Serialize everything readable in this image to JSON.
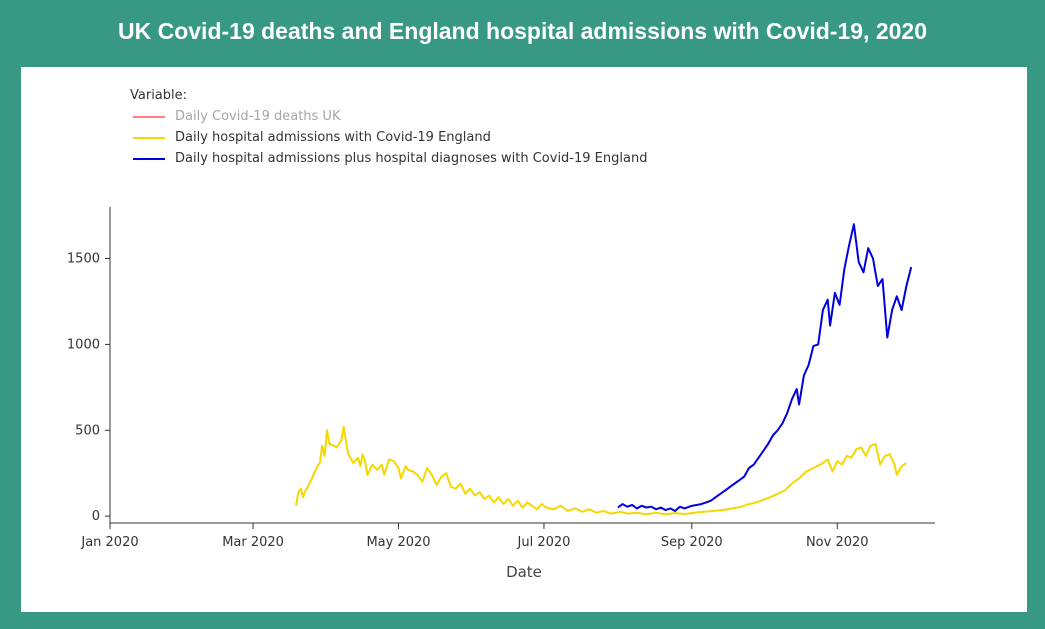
{
  "page": {
    "title": "UK Covid-19 deaths and England hospital admissions with Covid-19, 2020",
    "background": "#379884"
  },
  "chart_data": {
    "type": "line",
    "title": "UK Covid-19 deaths and England hospital admissions with Covid-19, 2020",
    "xlabel": "Date",
    "ylabel": "",
    "legend_title": "Variable:",
    "legend_position": "top-left",
    "grid": false,
    "xlim": [
      "2020-01-01",
      "2020-12-12"
    ],
    "ylim": [
      -40,
      1800
    ],
    "x_ticks": [
      {
        "date": "2020-01-01",
        "label": "Jan 2020"
      },
      {
        "date": "2020-03-01",
        "label": "Mar 2020"
      },
      {
        "date": "2020-05-01",
        "label": "May 2020"
      },
      {
        "date": "2020-07-01",
        "label": "Jul 2020"
      },
      {
        "date": "2020-09-01",
        "label": "Sep 2020"
      },
      {
        "date": "2020-11-01",
        "label": "Nov 2020"
      }
    ],
    "y_ticks": [
      0,
      500,
      1000,
      1500
    ],
    "series": [
      {
        "name": "Daily Covid-19 deaths UK",
        "color": "#ff8080",
        "visible": false,
        "points": []
      },
      {
        "name": "Daily hospital admissions with Covid-19 England",
        "color": "#f5d800",
        "visible": true,
        "points": [
          [
            "2020-03-19",
            60
          ],
          [
            "2020-03-20",
            140
          ],
          [
            "2020-03-21",
            160
          ],
          [
            "2020-03-22",
            110
          ],
          [
            "2020-03-23",
            150
          ],
          [
            "2020-03-24",
            170
          ],
          [
            "2020-03-26",
            230
          ],
          [
            "2020-03-28",
            290
          ],
          [
            "2020-03-29",
            310
          ],
          [
            "2020-03-30",
            410
          ],
          [
            "2020-03-31",
            350
          ],
          [
            "2020-04-01",
            500
          ],
          [
            "2020-04-02",
            420
          ],
          [
            "2020-04-04",
            410
          ],
          [
            "2020-04-05",
            400
          ],
          [
            "2020-04-07",
            440
          ],
          [
            "2020-04-08",
            520
          ],
          [
            "2020-04-09",
            430
          ],
          [
            "2020-04-10",
            360
          ],
          [
            "2020-04-12",
            310
          ],
          [
            "2020-04-14",
            340
          ],
          [
            "2020-04-15",
            290
          ],
          [
            "2020-04-16",
            360
          ],
          [
            "2020-04-17",
            320
          ],
          [
            "2020-04-18",
            240
          ],
          [
            "2020-04-20",
            300
          ],
          [
            "2020-04-22",
            270
          ],
          [
            "2020-04-24",
            300
          ],
          [
            "2020-04-25",
            240
          ],
          [
            "2020-04-27",
            330
          ],
          [
            "2020-04-29",
            320
          ],
          [
            "2020-05-01",
            280
          ],
          [
            "2020-05-02",
            220
          ],
          [
            "2020-05-04",
            290
          ],
          [
            "2020-05-05",
            270
          ],
          [
            "2020-05-07",
            260
          ],
          [
            "2020-05-09",
            240
          ],
          [
            "2020-05-11",
            200
          ],
          [
            "2020-05-13",
            280
          ],
          [
            "2020-05-15",
            240
          ],
          [
            "2020-05-17",
            180
          ],
          [
            "2020-05-19",
            230
          ],
          [
            "2020-05-21",
            250
          ],
          [
            "2020-05-23",
            170
          ],
          [
            "2020-05-25",
            160
          ],
          [
            "2020-05-27",
            190
          ],
          [
            "2020-05-29",
            130
          ],
          [
            "2020-05-31",
            160
          ],
          [
            "2020-06-02",
            120
          ],
          [
            "2020-06-04",
            140
          ],
          [
            "2020-06-06",
            100
          ],
          [
            "2020-06-08",
            120
          ],
          [
            "2020-06-10",
            80
          ],
          [
            "2020-06-12",
            110
          ],
          [
            "2020-06-14",
            70
          ],
          [
            "2020-06-16",
            100
          ],
          [
            "2020-06-18",
            60
          ],
          [
            "2020-06-20",
            90
          ],
          [
            "2020-06-22",
            50
          ],
          [
            "2020-06-24",
            80
          ],
          [
            "2020-06-26",
            60
          ],
          [
            "2020-06-28",
            40
          ],
          [
            "2020-06-30",
            70
          ],
          [
            "2020-07-02",
            50
          ],
          [
            "2020-07-05",
            40
          ],
          [
            "2020-07-08",
            60
          ],
          [
            "2020-07-11",
            30
          ],
          [
            "2020-07-14",
            45
          ],
          [
            "2020-07-17",
            25
          ],
          [
            "2020-07-20",
            40
          ],
          [
            "2020-07-23",
            20
          ],
          [
            "2020-07-26",
            30
          ],
          [
            "2020-07-29",
            15
          ],
          [
            "2020-08-02",
            25
          ],
          [
            "2020-08-05",
            15
          ],
          [
            "2020-08-09",
            20
          ],
          [
            "2020-08-13",
            10
          ],
          [
            "2020-08-17",
            20
          ],
          [
            "2020-08-21",
            10
          ],
          [
            "2020-08-25",
            18
          ],
          [
            "2020-08-29",
            12
          ],
          [
            "2020-09-02",
            20
          ],
          [
            "2020-09-06",
            25
          ],
          [
            "2020-09-10",
            30
          ],
          [
            "2020-09-14",
            35
          ],
          [
            "2020-09-18",
            45
          ],
          [
            "2020-09-22",
            55
          ],
          [
            "2020-09-25",
            70
          ],
          [
            "2020-09-28",
            80
          ],
          [
            "2020-10-01",
            95
          ],
          [
            "2020-10-04",
            110
          ],
          [
            "2020-10-07",
            130
          ],
          [
            "2020-10-10",
            150
          ],
          [
            "2020-10-13",
            190
          ],
          [
            "2020-10-16",
            220
          ],
          [
            "2020-10-19",
            260
          ],
          [
            "2020-10-22",
            280
          ],
          [
            "2020-10-25",
            300
          ],
          [
            "2020-10-28",
            330
          ],
          [
            "2020-10-30",
            260
          ],
          [
            "2020-11-01",
            320
          ],
          [
            "2020-11-03",
            300
          ],
          [
            "2020-11-05",
            350
          ],
          [
            "2020-11-07",
            340
          ],
          [
            "2020-11-09",
            390
          ],
          [
            "2020-11-11",
            400
          ],
          [
            "2020-11-13",
            350
          ],
          [
            "2020-11-15",
            410
          ],
          [
            "2020-11-17",
            420
          ],
          [
            "2020-11-19",
            300
          ],
          [
            "2020-11-21",
            350
          ],
          [
            "2020-11-23",
            360
          ],
          [
            "2020-11-25",
            300
          ],
          [
            "2020-11-26",
            240
          ],
          [
            "2020-11-28",
            290
          ],
          [
            "2020-11-30",
            310
          ]
        ]
      },
      {
        "name": "Daily hospital admissions plus hospital diagnoses with Covid-19 England",
        "color": "#0000dd",
        "visible": true,
        "points": [
          [
            "2020-08-01",
            50
          ],
          [
            "2020-08-03",
            70
          ],
          [
            "2020-08-05",
            55
          ],
          [
            "2020-08-07",
            65
          ],
          [
            "2020-08-09",
            45
          ],
          [
            "2020-08-11",
            60
          ],
          [
            "2020-08-13",
            50
          ],
          [
            "2020-08-15",
            55
          ],
          [
            "2020-08-17",
            40
          ],
          [
            "2020-08-19",
            50
          ],
          [
            "2020-08-21",
            35
          ],
          [
            "2020-08-23",
            45
          ],
          [
            "2020-08-25",
            30
          ],
          [
            "2020-08-27",
            55
          ],
          [
            "2020-08-29",
            45
          ],
          [
            "2020-09-01",
            60
          ],
          [
            "2020-09-03",
            65
          ],
          [
            "2020-09-05",
            70
          ],
          [
            "2020-09-07",
            80
          ],
          [
            "2020-09-09",
            90
          ],
          [
            "2020-09-11",
            110
          ],
          [
            "2020-09-13",
            130
          ],
          [
            "2020-09-15",
            150
          ],
          [
            "2020-09-17",
            170
          ],
          [
            "2020-09-19",
            190
          ],
          [
            "2020-09-21",
            210
          ],
          [
            "2020-09-23",
            230
          ],
          [
            "2020-09-25",
            280
          ],
          [
            "2020-09-27",
            300
          ],
          [
            "2020-09-29",
            340
          ],
          [
            "2020-10-01",
            380
          ],
          [
            "2020-10-03",
            420
          ],
          [
            "2020-10-05",
            470
          ],
          [
            "2020-10-07",
            500
          ],
          [
            "2020-10-09",
            540
          ],
          [
            "2020-10-11",
            600
          ],
          [
            "2020-10-13",
            680
          ],
          [
            "2020-10-15",
            740
          ],
          [
            "2020-10-16",
            650
          ],
          [
            "2020-10-18",
            820
          ],
          [
            "2020-10-20",
            880
          ],
          [
            "2020-10-22",
            990
          ],
          [
            "2020-10-24",
            1000
          ],
          [
            "2020-10-26",
            1200
          ],
          [
            "2020-10-28",
            1260
          ],
          [
            "2020-10-29",
            1110
          ],
          [
            "2020-10-31",
            1300
          ],
          [
            "2020-11-02",
            1230
          ],
          [
            "2020-11-04",
            1440
          ],
          [
            "2020-11-06",
            1580
          ],
          [
            "2020-11-08",
            1700
          ],
          [
            "2020-11-10",
            1480
          ],
          [
            "2020-11-12",
            1420
          ],
          [
            "2020-11-14",
            1560
          ],
          [
            "2020-11-16",
            1500
          ],
          [
            "2020-11-18",
            1340
          ],
          [
            "2020-11-20",
            1380
          ],
          [
            "2020-11-22",
            1040
          ],
          [
            "2020-11-24",
            1200
          ],
          [
            "2020-11-26",
            1280
          ],
          [
            "2020-11-28",
            1200
          ],
          [
            "2020-11-30",
            1340
          ],
          [
            "2020-12-02",
            1450
          ]
        ]
      }
    ]
  }
}
